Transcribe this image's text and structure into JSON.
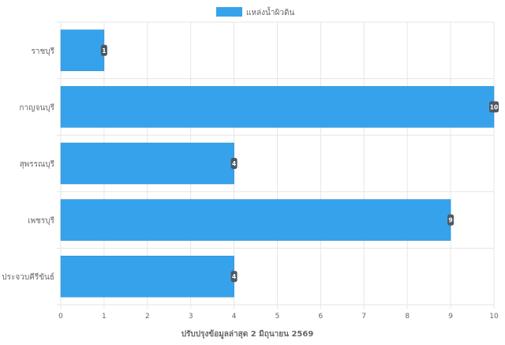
{
  "chart_data": {
    "type": "bar",
    "orientation": "horizontal",
    "categories": [
      "ราชบุรี",
      "กาญจนบุรี",
      "สุพรรณบุรี",
      "เพชรบุรี",
      "ประจวบคีรีขันธ์"
    ],
    "series": [
      {
        "name": "แหล่งน้ำผิวดิน",
        "values": [
          1,
          10,
          4,
          9,
          4
        ],
        "color": "#36a2eb"
      }
    ],
    "xlim": [
      0,
      10
    ],
    "xticks": [
      0,
      1,
      2,
      3,
      4,
      5,
      6,
      7,
      8,
      9,
      10
    ],
    "xlabel": "ปรับปรุงข้อมูลล่าสุด 2 มิถุนายน 2569",
    "ylabel": "",
    "title": "",
    "legend_position": "top-center",
    "grid": true,
    "data_labels": true,
    "colors": {
      "bar_fill": "#36a2eb",
      "bar_stroke": "#2b88c9",
      "label_bg": "#4f5761",
      "grid": "#e6e6e6",
      "text": "#666666",
      "decoration": "#2e9b3c"
    }
  }
}
